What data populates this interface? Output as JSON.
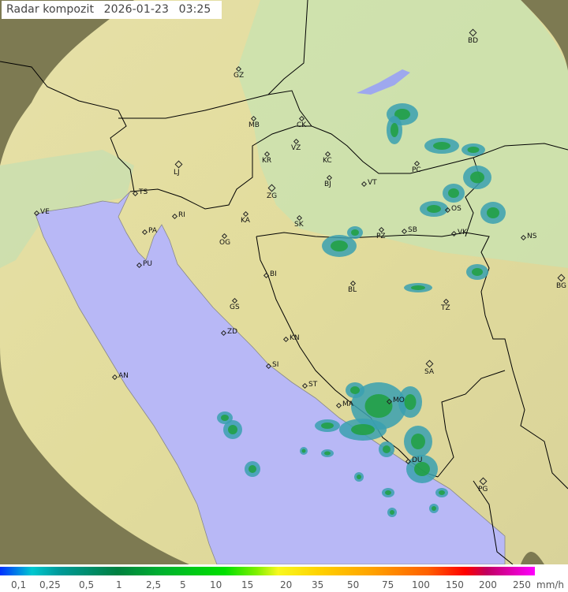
{
  "title": {
    "label": "Radar kompozit",
    "date": "2026-01-23",
    "time": "03:25"
  },
  "legend": {
    "unit": "mm/h",
    "ticks": [
      "0,1",
      "0,25",
      "0,5",
      "1",
      "2,5",
      "5",
      "10",
      "15",
      "20",
      "35",
      "50",
      "75",
      "100",
      "150",
      "200",
      "250"
    ],
    "colors": {
      "low": "#0030ff",
      "mid": "#00e000",
      "high": "#ff0000",
      "max": "#ff00ff"
    }
  },
  "colors": {
    "sea": "#b8b8f6",
    "land": "#d8e4a8",
    "outside_range": "#7d7a52",
    "echo_light": "#3aa0b0",
    "echo_strong": "#20a040",
    "border": "#000000"
  },
  "cities": [
    "GZ",
    "BD",
    "MB",
    "CK",
    "VZ",
    "KR",
    "KC",
    "PC",
    "LJ",
    "BJ",
    "VT",
    "TS",
    "ZG",
    "VE",
    "RI",
    "KA",
    "SK",
    "OS",
    "PZ",
    "SB",
    "PA",
    "OG",
    "VK",
    "NS",
    "PU",
    "BG",
    "BI",
    "BL",
    "GS",
    "TZ",
    "ZD",
    "KN",
    "SA",
    "SI",
    "AN",
    "ST",
    "MO",
    "MA",
    "DU",
    "PG"
  ]
}
